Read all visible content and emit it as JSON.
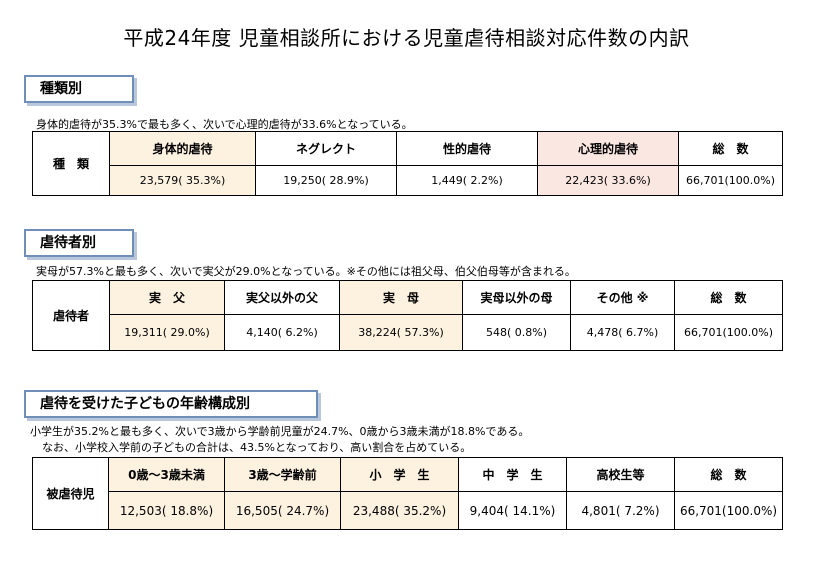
{
  "title": "平成24年度 児童相談所における児童虐待相談対応件数の内訳",
  "sections": {
    "type": {
      "label": "種類別",
      "note": "身体的虐待が35.3%で最も多く、次いで心理的虐待が33.6%となっている。",
      "row_header": "種　類",
      "headers": [
        "身体的虐待",
        "ネグレクト",
        "性的虐待",
        "心理的虐待",
        "総　数"
      ],
      "values": [
        "23,579( 35.3%)",
        "19,250( 28.9%)",
        "1,449(  2.2%)",
        "22,423( 33.6%)",
        "66,701(100.0%)"
      ]
    },
    "abuser": {
      "label": "虐待者別",
      "note": "実母が57.3%と最も多く、次いで実父が29.0%となっている。※その他には祖父母、伯父伯母等が含まれる。",
      "row_header": "虐待者",
      "headers": [
        "実　父",
        "実父以外の父",
        "実　母",
        "実母以外の母",
        "その他 ※",
        "総　数"
      ],
      "values": [
        "19,311( 29.0%)",
        "4,140(  6.2%)",
        "38,224( 57.3%)",
        "548(  0.8%)",
        "4,478(  6.7%)",
        "66,701(100.0%)"
      ]
    },
    "age": {
      "label": "虐待を受けた子どもの年齢構成別",
      "note_line1": "小学生が35.2%と最も多く、次いで3歳から学齢前児童が24.7%、0歳から3歳未満が18.8%である。",
      "note_line2": "なお、小学校入学前の子どもの合計は、43.5%となっており、高い割合を占めている。",
      "row_header": "被虐待児",
      "headers": [
        "0歳～3歳未満",
        "3歳～学齢前",
        "小　学　生",
        "中　学　生",
        "高校生等",
        "総　数"
      ],
      "values": [
        "12,503( 18.8%)",
        "16,505( 24.7%)",
        "23,488( 35.2%)",
        "9,404( 14.1%)",
        "4,801(  7.2%)",
        "66,701(100.0%)"
      ]
    }
  },
  "colors": {
    "highlight_orange": "#fdf1e0",
    "highlight_pink": "#fbe7e2",
    "label_border": "#6f8fb8"
  }
}
